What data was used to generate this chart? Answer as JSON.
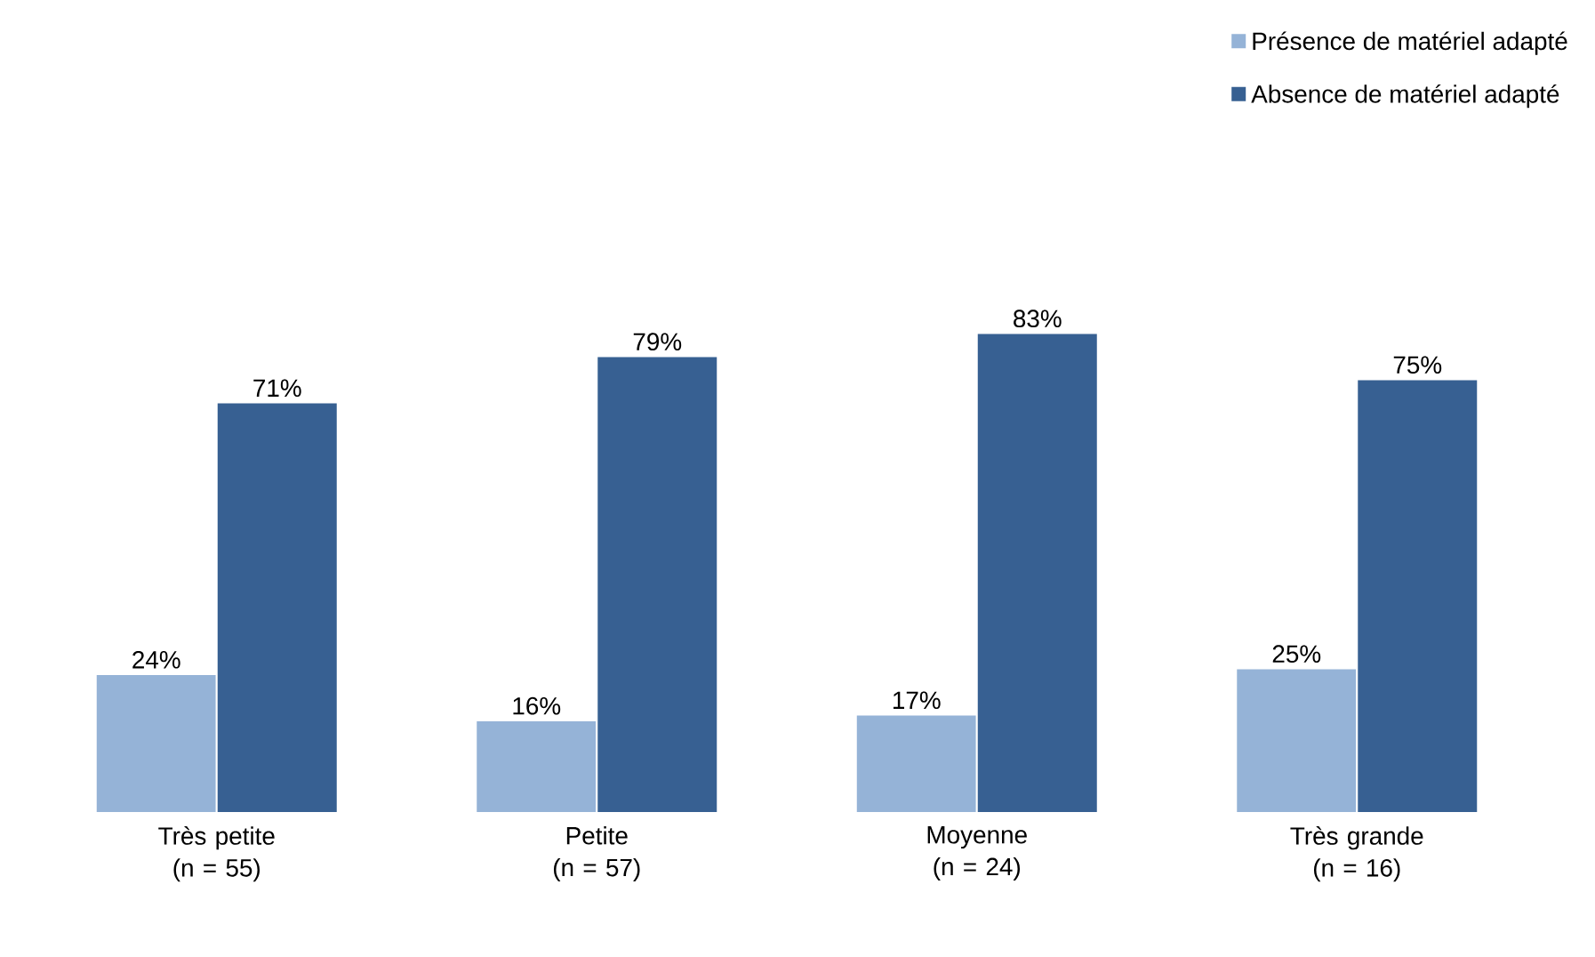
{
  "chart_data": {
    "type": "bar",
    "categories": [
      "Très petite (n = 55)",
      "Petite (n = 57)",
      "Moyenne (n = 24)",
      "Très grande (n = 16)"
    ],
    "series": [
      {
        "name": "Présence de matériel adapté",
        "color": "#95b3d7",
        "values": [
          24,
          16,
          17,
          25
        ],
        "value_labels": [
          "24%",
          "16%",
          "17%",
          "25%"
        ]
      },
      {
        "name": "Absence de matériel adapté",
        "color": "#376092",
        "values": [
          71,
          79,
          83,
          75
        ],
        "value_labels": [
          "71%",
          "79%",
          "83%",
          "75%"
        ]
      }
    ],
    "legend": "top right"
  }
}
